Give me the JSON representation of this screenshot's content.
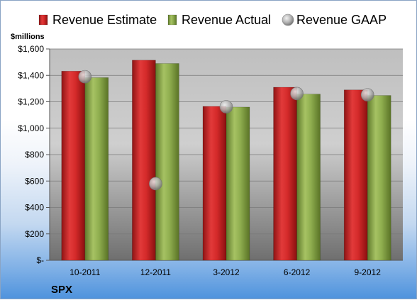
{
  "chart_data": {
    "type": "bar",
    "company": "SPX",
    "ylabel": "$millions",
    "ylim": [
      0,
      1600
    ],
    "yticks": [
      0,
      200,
      400,
      600,
      800,
      1000,
      1200,
      1400,
      1600
    ],
    "ytick_labels": [
      "$-",
      "$200",
      "$400",
      "$600",
      "$800",
      "$1,000",
      "$1,200",
      "$1,400",
      "$1,600"
    ],
    "categories": [
      "10-2011",
      "12-2011",
      "3-2012",
      "6-2012",
      "9-2012"
    ],
    "series": [
      {
        "name": "Revenue Estimate",
        "kind": "bar",
        "color": "#d42a2a",
        "values": [
          1432,
          1515,
          1165,
          1310,
          1290
        ]
      },
      {
        "name": "Revenue Actual",
        "kind": "bar",
        "color": "#8fae4f",
        "values": [
          1383,
          1490,
          1160,
          1258,
          1248
        ]
      },
      {
        "name": "Revenue GAAP",
        "kind": "marker",
        "color": "#b4b4b4",
        "values": [
          1390,
          580,
          1162,
          1262,
          1253
        ]
      }
    ],
    "legend_position": "top",
    "grid": true
  }
}
